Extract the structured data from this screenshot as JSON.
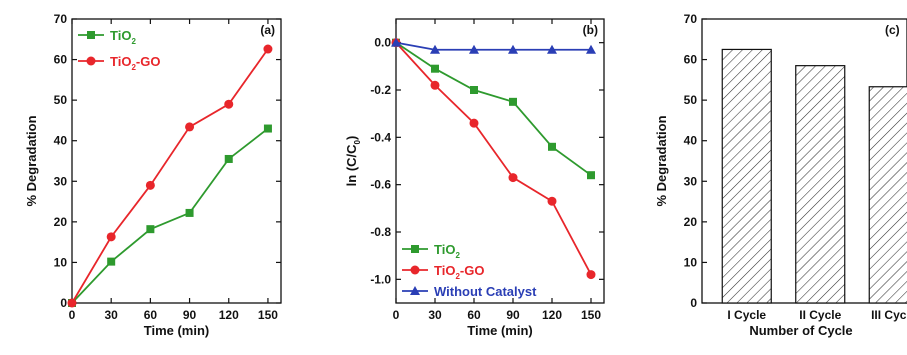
{
  "chart_data": [
    {
      "type": "line",
      "panel_label": "(a)",
      "xlabel": "Time (min)",
      "ylabel": "% Degradation",
      "xlim": [
        0,
        160
      ],
      "ylim": [
        0,
        70
      ],
      "xticks": [
        "0",
        "30",
        "60",
        "90",
        "120",
        "150"
      ],
      "yticks": [
        "0",
        "10",
        "20",
        "30",
        "40",
        "50",
        "60",
        "70"
      ],
      "x": [
        0,
        30,
        60,
        90,
        120,
        150
      ],
      "series": [
        {
          "name": "TiO",
          "name_sub": "2",
          "name_suffix": "",
          "color": "#2e9a2e",
          "marker": "square",
          "values": [
            0,
            10.2,
            18.2,
            22.2,
            35.5,
            43.0
          ]
        },
        {
          "name": "TiO",
          "name_sub": "2",
          "name_suffix": "-GO",
          "color": "#e8262b",
          "marker": "circle",
          "values": [
            0,
            16.3,
            29.0,
            43.4,
            49.0,
            62.6
          ]
        }
      ],
      "legend": "top-left"
    },
    {
      "type": "line",
      "panel_label": "(b)",
      "xlabel": "Time (min)",
      "ylabel": "ln (C/C",
      "ylabel_sub": "0",
      "ylabel_suffix": ")",
      "xlim": [
        0,
        160
      ],
      "ylim": [
        -1.1,
        0.1
      ],
      "xticks": [
        "0",
        "30",
        "60",
        "90",
        "120",
        "150"
      ],
      "yticks": [
        "0.0",
        "-0.2",
        "-0.4",
        "-0.6",
        "-0.8",
        "-1.0"
      ],
      "x": [
        0,
        30,
        60,
        90,
        120,
        150
      ],
      "series": [
        {
          "name": "TiO",
          "name_sub": "2",
          "name_suffix": "",
          "color": "#2e9a2e",
          "marker": "square",
          "values": [
            0,
            -0.11,
            -0.2,
            -0.25,
            -0.44,
            -0.56
          ]
        },
        {
          "name": "TiO",
          "name_sub": "2",
          "name_suffix": "-GO",
          "color": "#e8262b",
          "marker": "circle",
          "values": [
            0,
            -0.18,
            -0.34,
            -0.57,
            -0.67,
            -0.98
          ]
        },
        {
          "name": "Without Catalyst",
          "name_sub": "",
          "name_suffix": "",
          "color": "#2a3eb5",
          "marker": "triangle",
          "values": [
            0,
            -0.03,
            -0.03,
            -0.03,
            -0.03,
            -0.03
          ]
        }
      ],
      "legend": "bottom-left"
    },
    {
      "type": "bar",
      "panel_label": "(c)",
      "xlabel": "Number of Cycle",
      "ylabel": "% Degradation",
      "ylim": [
        0,
        70
      ],
      "yticks": [
        "0",
        "10",
        "20",
        "30",
        "40",
        "50",
        "60",
        "70"
      ],
      "categories": [
        "I Cycle",
        "II Cycle",
        "III Cycle"
      ],
      "values": [
        62.5,
        58.5,
        53.3
      ],
      "fill_pattern": "hatched"
    }
  ]
}
